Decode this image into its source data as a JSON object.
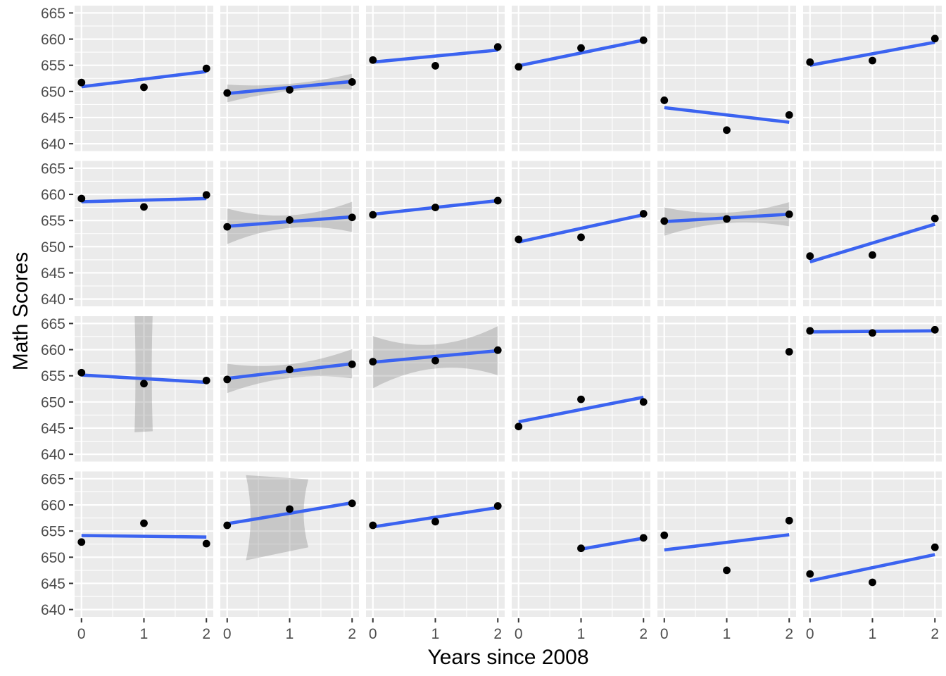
{
  "axes": {
    "x_label": "Years since 2008",
    "y_label": "Math Scores",
    "x_tick_labels": [
      "0",
      "1",
      "2"
    ],
    "y_tick_labels": [
      "665",
      "660",
      "655",
      "650",
      "645",
      "640"
    ]
  },
  "colors": {
    "panel_bg": "#EBEBEB",
    "grid": "#FFFFFF",
    "line": "#3B63F0",
    "point": "#000000",
    "band": "rgba(115,115,115,0.30)",
    "tick_label": "#4D4D4D",
    "tick_mark": "#333333",
    "axis_title": "#000000"
  },
  "chart_data": {
    "type": "scatter",
    "title": "",
    "xlabel": "Years since 2008",
    "ylabel": "Math Scores",
    "facet_grid": {
      "rows": 4,
      "cols": 6,
      "strip_labels": false
    },
    "xlim": [
      -0.11,
      2.11
    ],
    "ylim": [
      638.6,
      666.4
    ],
    "x_major": [
      0,
      1,
      2
    ],
    "x_minor": [
      0.5,
      1.5
    ],
    "y_major": [
      665,
      660,
      655,
      650,
      645,
      640
    ],
    "y_minor": [
      662.5,
      657.5,
      652.5,
      647.5,
      642.5
    ],
    "legend": "none",
    "grid": true,
    "panels": [
      {
        "row": 0,
        "col": 0,
        "points": [
          [
            0,
            651.7
          ],
          [
            1,
            650.8
          ],
          [
            2,
            654.4
          ]
        ],
        "line": {
          "x": [
            0,
            2
          ],
          "y": [
            650.9,
            653.8
          ]
        },
        "band": null
      },
      {
        "row": 0,
        "col": 1,
        "points": [
          [
            0,
            649.7
          ],
          [
            1,
            650.3
          ],
          [
            2,
            651.8
          ]
        ],
        "line": {
          "x": [
            0,
            2
          ],
          "y": [
            649.6,
            651.9
          ]
        },
        "band": {
          "type": "bowtie",
          "h0": 1.7,
          "hm": 0.7,
          "h2": 1.5
        }
      },
      {
        "row": 0,
        "col": 2,
        "points": [
          [
            0,
            656.0
          ],
          [
            1,
            654.9
          ],
          [
            2,
            658.5
          ]
        ],
        "line": {
          "x": [
            0,
            2
          ],
          "y": [
            655.6,
            657.9
          ]
        },
        "band": null
      },
      {
        "row": 0,
        "col": 3,
        "points": [
          [
            0,
            654.7
          ],
          [
            1,
            658.3
          ],
          [
            2,
            659.8
          ]
        ],
        "line": {
          "x": [
            0,
            2
          ],
          "y": [
            654.9,
            659.8
          ]
        },
        "band": null
      },
      {
        "row": 0,
        "col": 4,
        "points": [
          [
            0,
            648.3
          ],
          [
            1,
            642.6
          ],
          [
            2,
            645.5
          ]
        ],
        "line": {
          "x": [
            0,
            2
          ],
          "y": [
            646.9,
            644.1
          ]
        },
        "band": null
      },
      {
        "row": 0,
        "col": 5,
        "points": [
          [
            0,
            655.6
          ],
          [
            1,
            655.9
          ],
          [
            2,
            660.1
          ]
        ],
        "line": {
          "x": [
            0,
            2
          ],
          "y": [
            655.0,
            659.4
          ]
        },
        "band": null
      },
      {
        "row": 1,
        "col": 0,
        "points": [
          [
            0,
            659.2
          ],
          [
            1,
            657.6
          ],
          [
            2,
            659.9
          ]
        ],
        "line": {
          "x": [
            0,
            2
          ],
          "y": [
            658.6,
            659.2
          ]
        },
        "band": null
      },
      {
        "row": 1,
        "col": 1,
        "points": [
          [
            0,
            653.8
          ],
          [
            1,
            655.1
          ],
          [
            2,
            655.6
          ]
        ],
        "line": {
          "x": [
            0,
            2
          ],
          "y": [
            653.9,
            655.7
          ]
        },
        "band": {
          "type": "bowtie",
          "h0": 3.4,
          "hm": 1.2,
          "h2": 2.9
        }
      },
      {
        "row": 1,
        "col": 2,
        "points": [
          [
            0,
            656.1
          ],
          [
            1,
            657.5
          ],
          [
            2,
            658.8
          ]
        ],
        "line": {
          "x": [
            0,
            2
          ],
          "y": [
            656.2,
            658.8
          ]
        },
        "band": null
      },
      {
        "row": 1,
        "col": 3,
        "points": [
          [
            0,
            651.4
          ],
          [
            1,
            651.8
          ],
          [
            2,
            656.3
          ]
        ],
        "line": {
          "x": [
            0,
            2
          ],
          "y": [
            650.9,
            656.1
          ]
        },
        "band": null
      },
      {
        "row": 1,
        "col": 4,
        "points": [
          [
            0,
            654.9
          ],
          [
            1,
            655.3
          ],
          [
            2,
            656.2
          ]
        ],
        "line": {
          "x": [
            0,
            2
          ],
          "y": [
            654.8,
            656.2
          ]
        },
        "band": {
          "type": "bowtie",
          "h0": 2.7,
          "hm": 1.0,
          "h2": 2.3
        }
      },
      {
        "row": 1,
        "col": 5,
        "points": [
          [
            0,
            648.2
          ],
          [
            1,
            648.4
          ],
          [
            2,
            655.4
          ]
        ],
        "line": {
          "x": [
            0,
            2
          ],
          "y": [
            647.1,
            654.3
          ]
        },
        "band": null
      },
      {
        "row": 2,
        "col": 0,
        "points": [
          [
            0,
            655.6
          ],
          [
            1,
            653.5
          ],
          [
            2,
            654.1
          ]
        ],
        "line": {
          "x": [
            0,
            2
          ],
          "y": [
            655.15,
            653.75
          ]
        },
        "band": {
          "type": "hourglass",
          "x0": 0.85,
          "x1": 1.14,
          "ytl": 667.0,
          "ytr": 667.0,
          "ybl": 644.2,
          "ybr": 644.4,
          "pinch": 0.03
        }
      },
      {
        "row": 2,
        "col": 1,
        "points": [
          [
            0,
            654.3
          ],
          [
            1,
            656.2
          ],
          [
            2,
            657.2
          ]
        ],
        "line": {
          "x": [
            0,
            2
          ],
          "y": [
            654.5,
            657.3
          ]
        },
        "band": {
          "type": "bowtie",
          "h0": 2.8,
          "hm": 1.3,
          "h2": 2.8
        }
      },
      {
        "row": 2,
        "col": 2,
        "points": [
          [
            0,
            657.7
          ],
          [
            1,
            657.9
          ],
          [
            2,
            659.9
          ]
        ],
        "line": {
          "x": [
            0,
            2
          ],
          "y": [
            657.6,
            659.8
          ]
        },
        "band": {
          "type": "bowtie",
          "h0": 5.0,
          "hm": 2.3,
          "h2": 4.7
        }
      },
      {
        "row": 2,
        "col": 3,
        "points": [
          [
            0,
            645.3
          ],
          [
            1,
            650.5
          ],
          [
            2,
            650.0
          ]
        ],
        "line": {
          "x": [
            0,
            2
          ],
          "y": [
            646.2,
            650.9
          ]
        },
        "band": null
      },
      {
        "row": 2,
        "col": 4,
        "points": [
          [
            2,
            659.6
          ]
        ],
        "line": null,
        "band": null
      },
      {
        "row": 2,
        "col": 5,
        "points": [
          [
            0,
            663.6
          ],
          [
            1,
            663.2
          ],
          [
            2,
            663.8
          ]
        ],
        "line": {
          "x": [
            0,
            2
          ],
          "y": [
            663.4,
            663.6
          ]
        },
        "band": null
      },
      {
        "row": 3,
        "col": 0,
        "points": [
          [
            0,
            652.9
          ],
          [
            1,
            656.5
          ],
          [
            2,
            652.6
          ]
        ],
        "line": {
          "x": [
            0,
            2
          ],
          "y": [
            654.15,
            653.85
          ]
        },
        "band": null
      },
      {
        "row": 3,
        "col": 1,
        "points": [
          [
            0,
            656.1
          ],
          [
            1,
            659.2
          ],
          [
            2,
            660.3
          ]
        ],
        "line": {
          "x": [
            0,
            2
          ],
          "y": [
            656.4,
            660.4
          ]
        },
        "band": {
          "type": "hourglass",
          "x0": 0.3,
          "x1": 1.3,
          "ytl": 665.7,
          "ytr": 664.9,
          "ybl": 649.4,
          "ybr": 651.9,
          "pinch": 0.15
        }
      },
      {
        "row": 3,
        "col": 2,
        "points": [
          [
            0,
            656.1
          ],
          [
            1,
            656.8
          ],
          [
            2,
            659.8
          ]
        ],
        "line": {
          "x": [
            0,
            2
          ],
          "y": [
            655.8,
            659.5
          ]
        },
        "band": null
      },
      {
        "row": 3,
        "col": 3,
        "points": [
          [
            1,
            651.7
          ],
          [
            2,
            653.7
          ]
        ],
        "line": {
          "x": [
            1,
            2
          ],
          "y": [
            651.55,
            653.65
          ]
        },
        "band": null
      },
      {
        "row": 3,
        "col": 4,
        "points": [
          [
            0,
            654.2
          ],
          [
            1,
            647.5
          ],
          [
            2,
            657.0
          ]
        ],
        "line": {
          "x": [
            0,
            2
          ],
          "y": [
            651.4,
            654.3
          ]
        },
        "band": null
      },
      {
        "row": 3,
        "col": 5,
        "points": [
          [
            0,
            646.8
          ],
          [
            1,
            645.2
          ],
          [
            2,
            651.9
          ]
        ],
        "line": {
          "x": [
            0,
            2
          ],
          "y": [
            645.5,
            650.5
          ]
        },
        "band": null
      }
    ]
  }
}
